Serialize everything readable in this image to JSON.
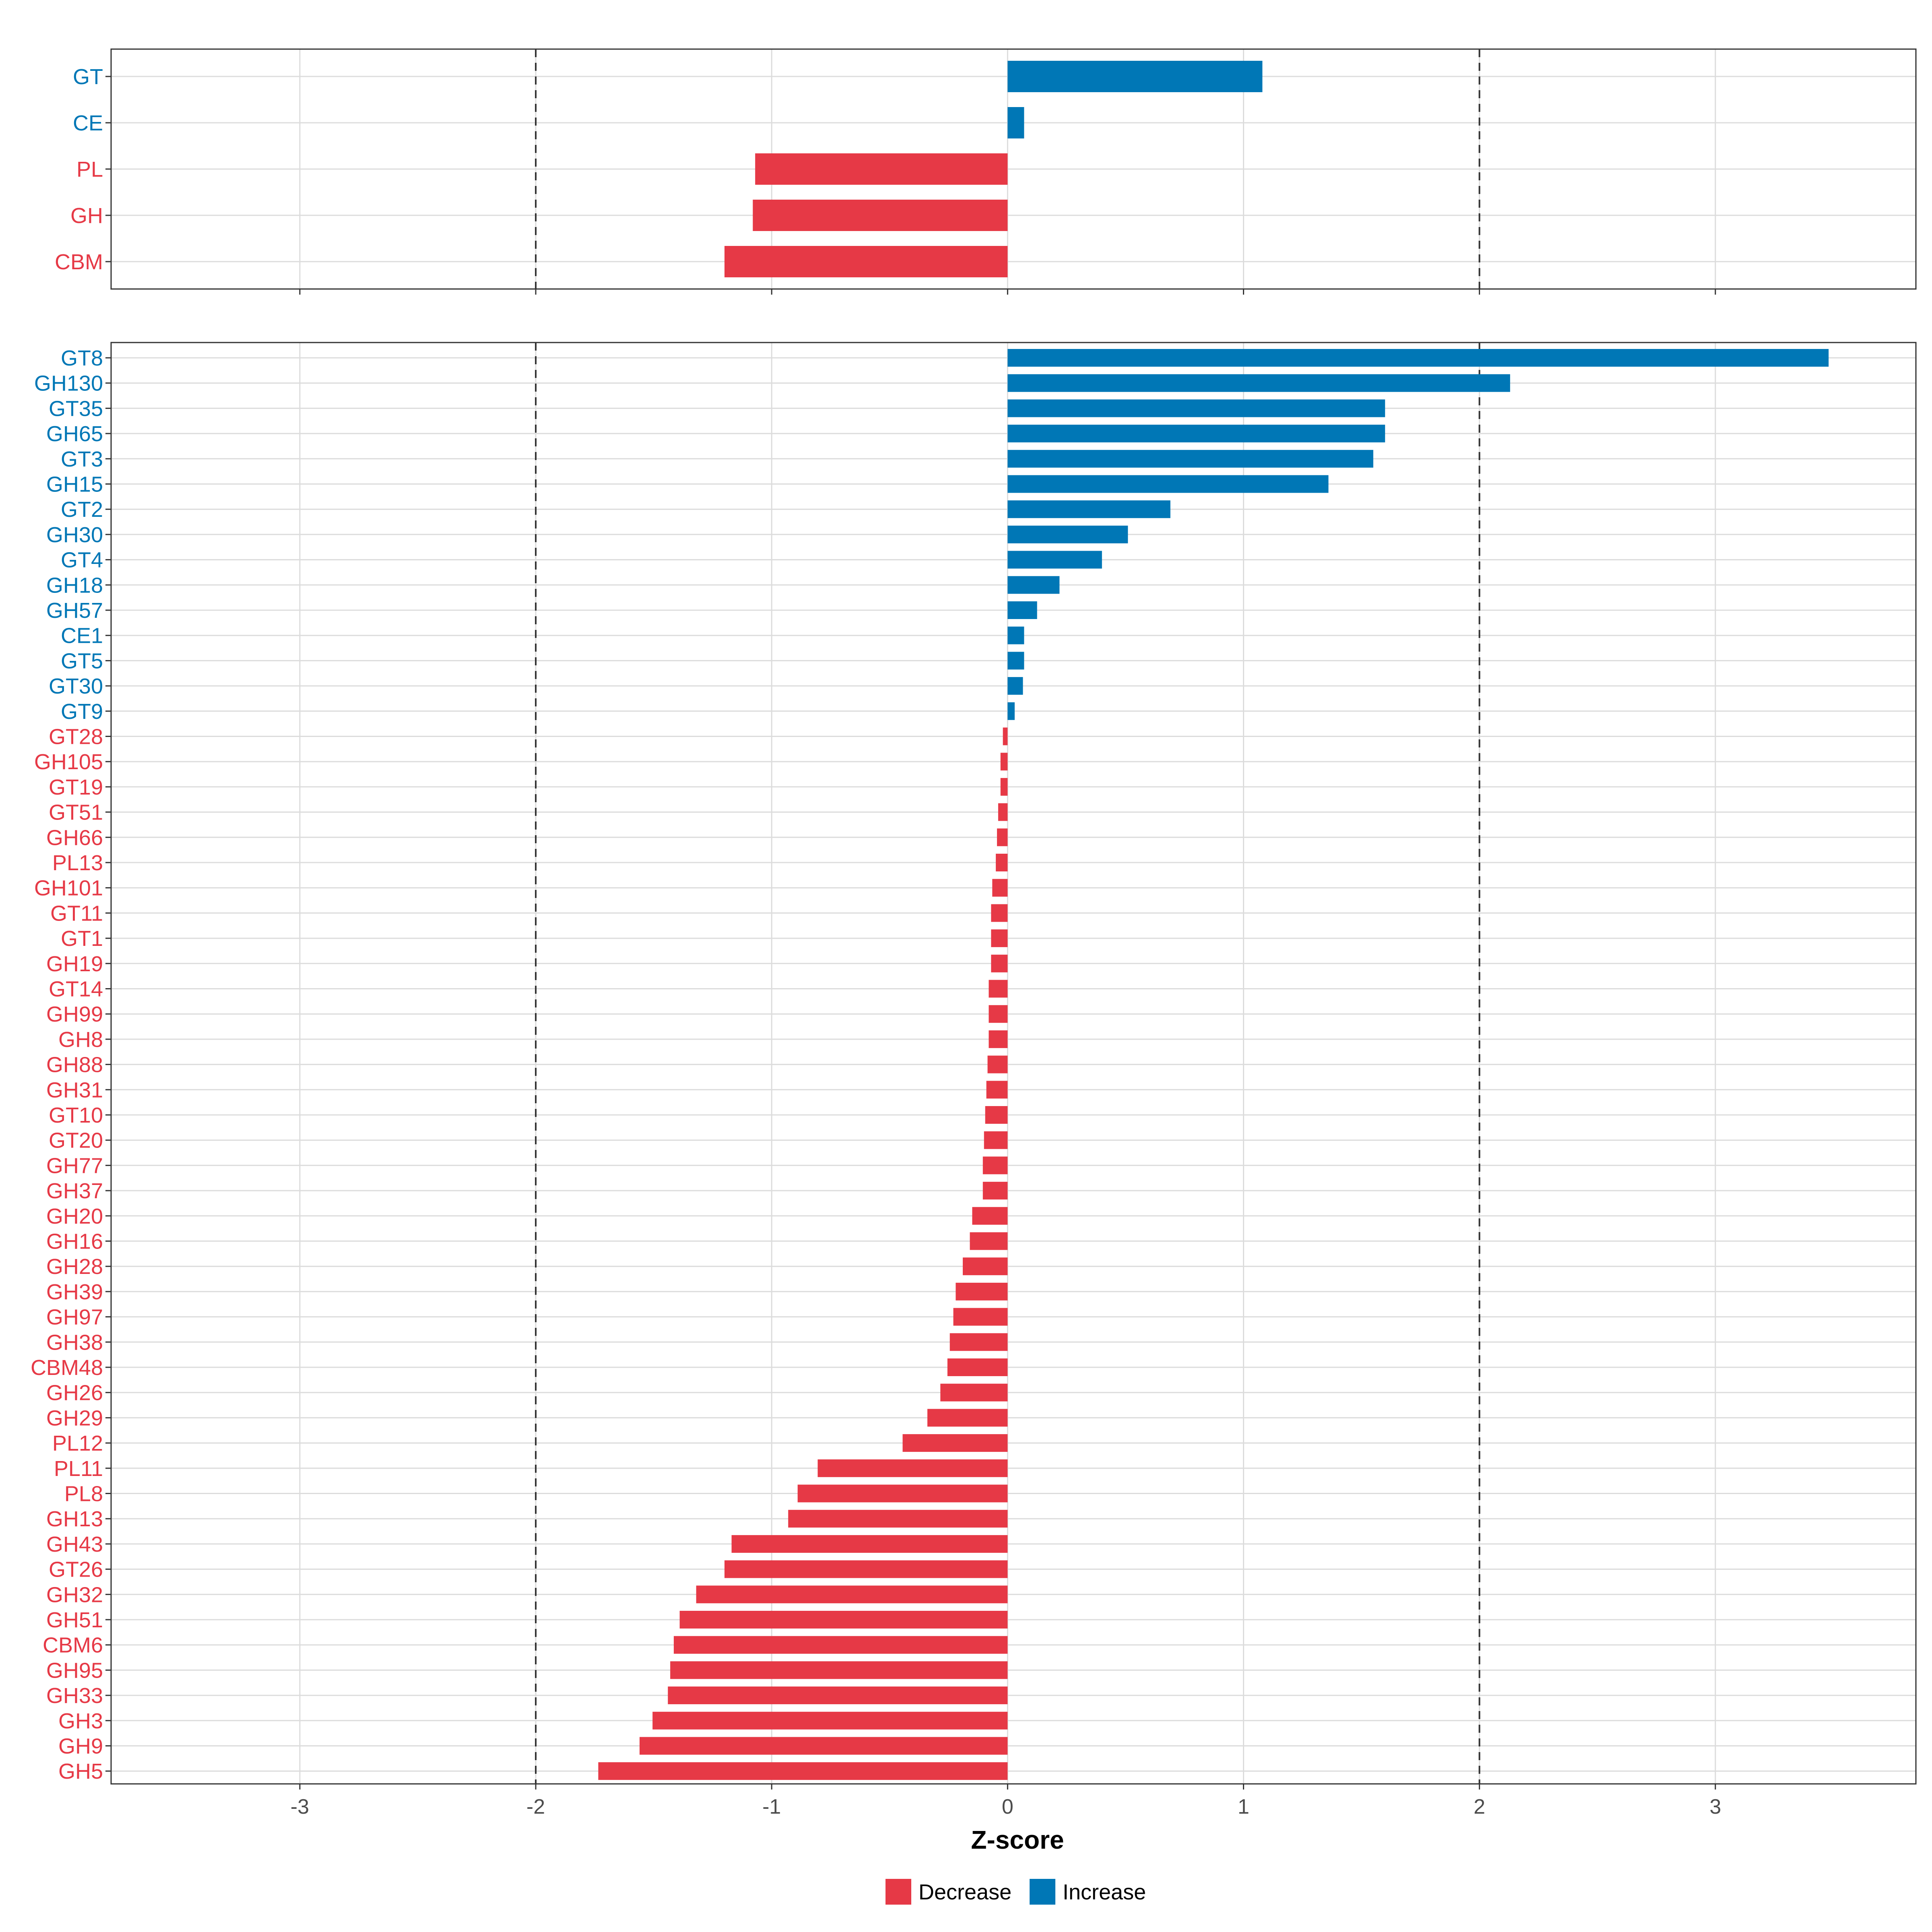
{
  "chart_data": [
    {
      "type": "bar",
      "orientation": "horizontal",
      "panel": "top",
      "categories": [
        "GT",
        "CE",
        "PL",
        "GH",
        "CBM"
      ],
      "values": [
        1.08,
        0.07,
        -1.07,
        -1.08,
        -1.2
      ],
      "xlim": [
        -3.8,
        3.85
      ],
      "reference_lines": [
        -2,
        2
      ],
      "grid": true
    },
    {
      "type": "bar",
      "orientation": "horizontal",
      "panel": "bottom",
      "categories": [
        "GT8",
        "GH130",
        "GT35",
        "GH65",
        "GT3",
        "GH15",
        "GT2",
        "GH30",
        "GT4",
        "GH18",
        "GH57",
        "CE1",
        "GT5",
        "GT30",
        "GT9",
        "GT28",
        "GH105",
        "GT19",
        "GT51",
        "GH66",
        "PL13",
        "GH101",
        "GT11",
        "GT1",
        "GH19",
        "GT14",
        "GH99",
        "GH8",
        "GH88",
        "GH31",
        "GT10",
        "GT20",
        "GH77",
        "GH37",
        "GH20",
        "GH16",
        "GH28",
        "GH39",
        "GH97",
        "GH38",
        "CBM48",
        "GH26",
        "GH29",
        "PL12",
        "PL11",
        "PL8",
        "GH13",
        "GH43",
        "GT26",
        "GH32",
        "GH51",
        "CBM6",
        "GH95",
        "GH33",
        "GH3",
        "GH9",
        "GH5"
      ],
      "values": [
        3.48,
        2.13,
        1.6,
        1.6,
        1.55,
        1.36,
        0.69,
        0.51,
        0.4,
        0.22,
        0.125,
        0.07,
        0.07,
        0.065,
        0.03,
        -0.02,
        -0.03,
        -0.03,
        -0.04,
        -0.045,
        -0.05,
        -0.065,
        -0.07,
        -0.07,
        -0.07,
        -0.08,
        -0.08,
        -0.08,
        -0.085,
        -0.09,
        -0.095,
        -0.1,
        -0.105,
        -0.105,
        -0.15,
        -0.16,
        -0.19,
        -0.22,
        -0.23,
        -0.245,
        -0.255,
        -0.285,
        -0.34,
        -0.445,
        -0.805,
        -0.89,
        -0.93,
        -1.17,
        -1.2,
        -1.32,
        -1.39,
        -1.415,
        -1.43,
        -1.44,
        -1.505,
        -1.56,
        -1.735
      ],
      "xlabel": "Z-score",
      "xticks": [
        -3,
        -2,
        -1,
        0,
        1,
        2,
        3
      ],
      "xlim": [
        -3.8,
        3.85
      ],
      "reference_lines": [
        -2,
        2
      ],
      "grid": true
    }
  ],
  "legend": {
    "position": "bottom",
    "items": [
      {
        "label": "Decrease",
        "color": "#E63946"
      },
      {
        "label": "Increase",
        "color": "#0077B6"
      }
    ]
  }
}
